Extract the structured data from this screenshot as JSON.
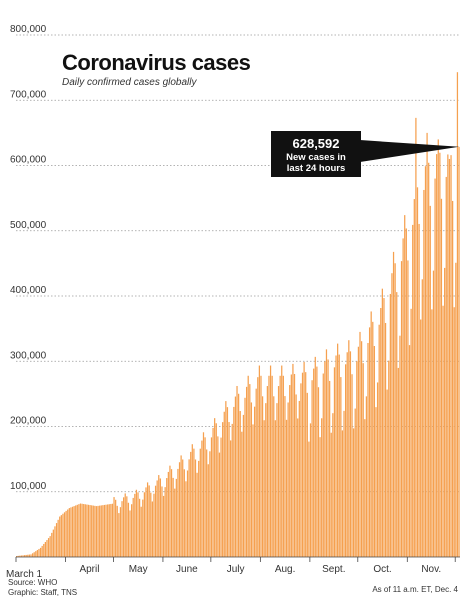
{
  "chart_data": {
    "type": "bar",
    "title": "Coronavirus cases",
    "subtitle": "Daily confirmed cases globally",
    "y_ticks": [
      100000,
      200000,
      300000,
      400000,
      500000,
      600000,
      700000,
      800000
    ],
    "y_tick_labels": [
      "100,000",
      "200,000",
      "300,000",
      "400,000",
      "500,000",
      "600,000",
      "700,000",
      "800,000"
    ],
    "ylim": [
      0,
      800000
    ],
    "x_labels": [
      "March 1",
      "April",
      "May",
      "June",
      "July",
      "Aug.",
      "Sept.",
      "Oct.",
      "Nov."
    ],
    "grid": true,
    "bar_color": "#f5a04f",
    "start_date": "2020-03-01",
    "end_date": "2020-12-03",
    "anchors": [
      [
        "2020-03-01",
        1500
      ],
      [
        "2020-03-10",
        4000
      ],
      [
        "2020-03-16",
        14000
      ],
      [
        "2020-03-22",
        32000
      ],
      [
        "2020-03-28",
        62000
      ],
      [
        "2020-04-03",
        75000
      ],
      [
        "2020-04-10",
        82000
      ],
      [
        "2020-04-20",
        78000
      ],
      [
        "2020-05-01",
        82000
      ],
      [
        "2020-05-15",
        92000
      ],
      [
        "2020-05-31",
        115000
      ],
      [
        "2020-06-15",
        145000
      ],
      [
        "2020-06-30",
        180000
      ],
      [
        "2020-07-15",
        230000
      ],
      [
        "2020-07-31",
        262000
      ],
      [
        "2020-08-15",
        262000
      ],
      [
        "2020-08-31",
        268000
      ],
      [
        "2020-09-15",
        290000
      ],
      [
        "2020-09-30",
        300000
      ],
      [
        "2020-10-15",
        360000
      ],
      [
        "2020-10-31",
        475000
      ],
      [
        "2020-11-10",
        560000
      ],
      [
        "2020-11-20",
        585000
      ],
      [
        "2020-11-30",
        580000
      ],
      [
        "2020-12-03",
        620000
      ]
    ],
    "overrides": [
      [
        "2020-11-06",
        673000
      ],
      [
        "2020-11-13",
        650000
      ],
      [
        "2020-11-20",
        640000
      ],
      [
        "2020-11-27",
        610000
      ],
      [
        "2020-12-02",
        743000
      ],
      [
        "2020-12-03",
        628592
      ]
    ],
    "callout": {
      "value": "628,592",
      "line1": "New cases in",
      "line2": "last 24 hours"
    }
  },
  "footer": {
    "source": "Source: WHO",
    "graphic": "Graphic: Staff, TNS",
    "asof": "As of 11 a.m. ET, Dec. 4"
  }
}
